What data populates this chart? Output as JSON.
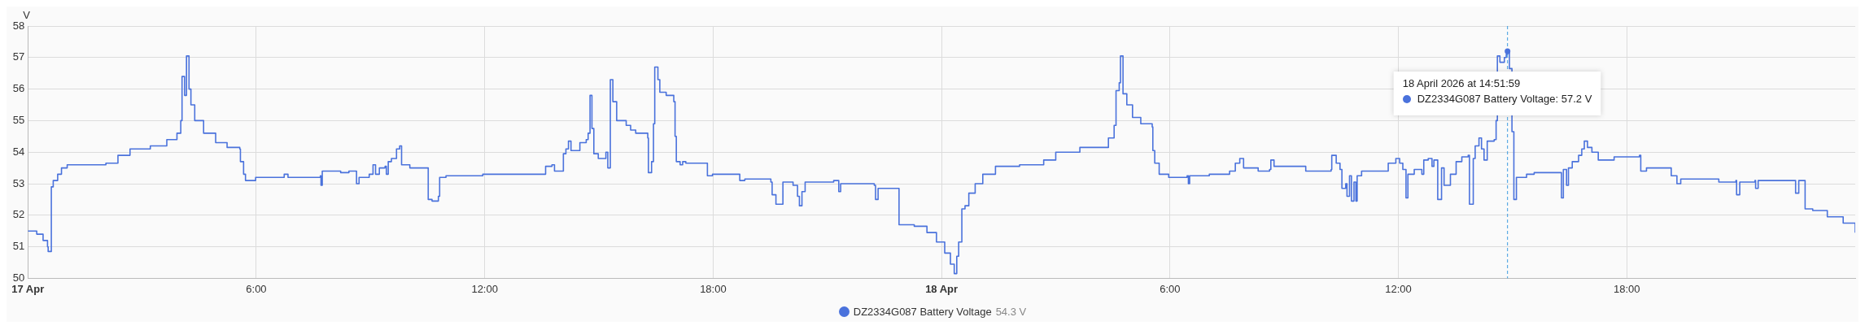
{
  "chart_data": {
    "type": "step",
    "ylabel": "V",
    "xlim": [
      "2026-04-17T00:00",
      "2026-04-19T00:00"
    ],
    "xticks": [
      {
        "value": "2026-04-17T00:00",
        "label": "17 Apr"
      },
      {
        "value": "2026-04-17T06:00",
        "label": "6:00"
      },
      {
        "value": "2026-04-17T12:00",
        "label": "12:00"
      },
      {
        "value": "2026-04-17T18:00",
        "label": "18:00"
      },
      {
        "value": "2026-04-18T00:00",
        "label": "18 Apr"
      },
      {
        "value": "2026-04-18T06:00",
        "label": "6:00"
      },
      {
        "value": "2026-04-18T12:00",
        "label": "12:00"
      },
      {
        "value": "2026-04-18T18:00",
        "label": "18:00"
      }
    ],
    "ylim": [
      50,
      58
    ],
    "yticks": [
      50,
      51,
      52,
      53,
      54,
      55,
      56,
      57,
      58
    ],
    "grid": true,
    "legend": "bottom",
    "x": [
      "2026-04-17T00:00",
      "2026-04-17T00:14",
      "2026-04-17T00:24",
      "2026-04-17T00:31",
      "2026-04-17T00:32",
      "2026-04-17T00:37",
      "2026-04-17T00:40",
      "2026-04-17T00:47",
      "2026-04-17T00:53",
      "2026-04-17T01:02",
      "2026-04-17T01:31",
      "2026-04-17T02:03",
      "2026-04-17T02:22",
      "2026-04-17T02:41",
      "2026-04-17T03:13",
      "2026-04-17T03:39",
      "2026-04-17T03:55",
      "2026-04-17T04:01",
      "2026-04-17T04:03",
      "2026-04-17T04:07",
      "2026-04-17T04:10",
      "2026-04-17T04:14",
      "2026-04-17T04:17",
      "2026-04-17T04:23",
      "2026-04-17T04:37",
      "2026-04-17T04:56",
      "2026-04-17T05:14",
      "2026-04-17T05:34",
      "2026-04-17T05:35",
      "2026-04-17T05:40",
      "2026-04-17T05:43",
      "2026-04-17T05:59",
      "2026-04-17T06:38",
      "2026-04-17T06:44",
      "2026-04-17T06:50",
      "2026-04-17T07:41",
      "2026-04-17T07:42",
      "2026-04-17T07:44",
      "2026-04-17T08:01",
      "2026-04-17T08:13",
      "2026-04-17T08:26",
      "2026-04-17T08:38",
      "2026-04-17T08:42",
      "2026-04-17T08:58",
      "2026-04-17T09:04",
      "2026-04-17T09:08",
      "2026-04-17T09:14",
      "2026-04-17T09:23",
      "2026-04-17T09:25",
      "2026-04-17T09:28",
      "2026-04-17T09:33",
      "2026-04-17T09:41",
      "2026-04-17T09:46",
      "2026-04-17T09:49",
      "2026-04-17T10:02",
      "2026-04-17T10:31",
      "2026-04-17T10:37",
      "2026-04-17T10:47",
      "2026-04-17T10:49",
      "2026-04-17T10:59",
      "2026-04-17T11:57",
      "2026-04-17T13:32",
      "2026-04-17T13:36",
      "2026-04-17T13:46",
      "2026-04-17T13:50",
      "2026-04-17T14:01",
      "2026-04-17T14:04",
      "2026-04-17T14:08",
      "2026-04-17T14:12",
      "2026-04-17T14:16",
      "2026-04-17T14:30",
      "2026-04-17T14:40",
      "2026-04-17T14:43",
      "2026-04-17T14:46",
      "2026-04-17T14:49",
      "2026-04-17T14:52",
      "2026-04-17T14:59",
      "2026-04-17T15:11",
      "2026-04-17T15:14",
      "2026-04-17T15:18",
      "2026-04-17T15:22",
      "2026-04-17T15:28",
      "2026-04-17T15:43",
      "2026-04-17T15:50",
      "2026-04-17T15:58",
      "2026-04-17T16:17",
      "2026-04-17T16:18",
      "2026-04-17T16:23",
      "2026-04-17T16:26",
      "2026-04-17T16:28",
      "2026-04-17T16:33",
      "2026-04-17T16:36",
      "2026-04-17T16:46",
      "2026-04-17T16:58",
      "2026-04-17T17:00",
      "2026-04-17T17:02",
      "2026-04-17T17:08",
      "2026-04-17T17:12",
      "2026-04-17T17:17",
      "2026-04-17T17:49",
      "2026-04-17T17:51",
      "2026-04-17T17:59",
      "2026-04-17T18:37",
      "2026-04-17T18:42",
      "2026-04-17T18:50",
      "2026-04-17T19:02",
      "2026-04-17T19:31",
      "2026-04-17T19:33",
      "2026-04-17T19:39",
      "2026-04-17T19:48",
      "2026-04-17T19:50",
      "2026-04-17T20:06",
      "2026-04-17T20:13",
      "2026-04-17T20:16",
      "2026-04-17T20:20",
      "2026-04-17T20:25",
      "2026-04-17T21:10",
      "2026-04-17T21:18",
      "2026-04-17T21:21",
      "2026-04-17T22:14",
      "2026-04-17T22:16",
      "2026-04-17T22:20",
      "2026-04-17T22:52",
      "2026-04-17T22:53",
      "2026-04-17T23:17",
      "2026-04-17T23:37",
      "2026-04-17T23:52",
      "2026-04-18T00:05",
      "2026-04-18T00:14",
      "2026-04-18T00:20",
      "2026-04-18T00:23",
      "2026-04-18T00:24",
      "2026-04-18T00:27",
      "2026-04-18T00:32",
      "2026-04-18T00:37",
      "2026-04-18T00:43",
      "2026-04-18T00:53",
      "2026-04-18T01:05",
      "2026-04-18T01:25",
      "2026-04-18T02:03",
      "2026-04-18T02:41",
      "2026-04-18T03:00",
      "2026-04-18T03:38",
      "2026-04-18T04:23",
      "2026-04-18T04:32",
      "2026-04-18T04:35",
      "2026-04-18T04:40",
      "2026-04-18T04:42",
      "2026-04-18T04:46",
      "2026-04-18T04:52",
      "2026-04-18T05:01",
      "2026-04-18T05:14",
      "2026-04-18T05:32",
      "2026-04-18T05:33",
      "2026-04-18T05:36",
      "2026-04-18T05:43",
      "2026-04-18T05:58",
      "2026-04-18T06:27",
      "2026-04-18T06:29",
      "2026-04-18T06:31",
      "2026-04-18T07:02",
      "2026-04-18T07:34",
      "2026-04-18T07:43",
      "2026-04-18T07:50",
      "2026-04-18T07:56",
      "2026-04-18T08:19",
      "2026-04-18T08:37",
      "2026-04-18T08:39",
      "2026-04-18T08:44",
      "2026-04-18T09:34",
      "2026-04-18T10:14",
      "2026-04-18T10:15",
      "2026-04-18T10:22",
      "2026-04-18T10:28",
      "2026-04-18T10:31",
      "2026-04-18T10:37",
      "2026-04-18T10:39",
      "2026-04-18T10:43",
      "2026-04-18T10:46",
      "2026-04-18T10:50",
      "2026-04-18T10:53",
      "2026-04-18T10:55",
      "2026-04-18T11:02",
      "2026-04-18T11:34",
      "2026-04-18T11:44",
      "2026-04-18T11:56",
      "2026-04-18T12:02",
      "2026-04-18T12:07",
      "2026-04-18T12:12",
      "2026-04-18T12:15",
      "2026-04-18T12:25",
      "2026-04-18T12:37",
      "2026-04-18T12:40",
      "2026-04-18T12:47",
      "2026-04-18T12:53",
      "2026-04-18T12:56",
      "2026-04-18T13:02",
      "2026-04-18T13:08",
      "2026-04-18T13:12",
      "2026-04-18T13:22",
      "2026-04-18T13:31",
      "2026-04-18T13:40",
      "2026-04-18T13:50",
      "2026-04-18T13:52",
      "2026-04-18T13:58",
      "2026-04-18T14:01",
      "2026-04-18T14:07",
      "2026-04-18T14:11",
      "2026-04-18T14:15",
      "2026-04-18T14:20",
      "2026-04-18T14:31",
      "2026-04-18T14:34",
      "2026-04-18T14:36",
      "2026-04-18T14:40",
      "2026-04-18T14:47",
      "2026-04-18T14:50",
      "2026-04-18T14:52",
      "2026-04-18T14:55",
      "2026-04-18T14:59",
      "2026-04-18T15:02",
      "2026-04-18T15:06",
      "2026-04-18T15:22",
      "2026-04-18T15:34",
      "2026-04-18T16:15",
      "2026-04-18T16:17",
      "2026-04-18T16:20",
      "2026-04-18T16:25",
      "2026-04-18T16:28",
      "2026-04-18T16:34",
      "2026-04-18T16:44",
      "2026-04-18T16:49",
      "2026-04-18T16:53",
      "2026-04-18T16:58",
      "2026-04-18T17:05",
      "2026-04-18T17:15",
      "2026-04-18T17:40",
      "2026-04-18T18:20",
      "2026-04-18T18:22",
      "2026-04-18T18:31",
      "2026-04-18T19:00",
      "2026-04-18T19:10",
      "2026-04-18T19:19",
      "2026-04-18T19:25",
      "2026-04-18T20:22",
      "2026-04-18T20:25",
      "2026-04-18T20:52",
      "2026-04-18T20:53",
      "2026-04-18T20:58",
      "2026-04-18T21:22",
      "2026-04-18T21:23",
      "2026-04-18T21:27",
      "2026-04-18T22:25",
      "2026-04-18T22:26",
      "2026-04-18T22:31",
      "2026-04-18T22:41",
      "2026-04-18T22:53",
      "2026-04-18T23:16",
      "2026-04-18T23:41",
      "2026-04-19T00:00"
    ],
    "series": [
      {
        "name": "DZ2334G087 Battery Voltage",
        "color": "#4a72dc",
        "values": [
          51.5,
          51.4,
          51.2,
          51.0,
          50.85,
          52.9,
          53.1,
          53.3,
          53.5,
          53.6,
          53.6,
          53.65,
          53.9,
          54.1,
          54.2,
          54.4,
          54.6,
          55.0,
          56.4,
          55.8,
          57.05,
          56.0,
          55.5,
          55.0,
          54.6,
          54.3,
          54.15,
          54.1,
          53.7,
          53.3,
          53.1,
          53.2,
          53.2,
          53.3,
          53.2,
          53.25,
          52.95,
          53.4,
          53.4,
          53.35,
          53.4,
          53.0,
          53.2,
          53.3,
          53.6,
          53.3,
          53.5,
          53.55,
          53.3,
          53.7,
          53.8,
          54.1,
          54.2,
          53.6,
          53.5,
          52.5,
          52.45,
          52.6,
          53.2,
          53.25,
          53.3,
          53.3,
          53.55,
          53.6,
          53.4,
          53.4,
          53.95,
          54.1,
          54.35,
          54.05,
          54.3,
          54.4,
          54.6,
          55.8,
          54.75,
          53.95,
          53.8,
          54.0,
          53.5,
          56.3,
          55.6,
          55.0,
          54.85,
          54.7,
          54.6,
          54.45,
          53.35,
          53.7,
          54.9,
          56.7,
          56.3,
          55.9,
          55.8,
          55.6,
          54.5,
          53.7,
          53.6,
          53.7,
          53.65,
          53.65,
          53.25,
          53.3,
          53.3,
          53.1,
          53.15,
          53.15,
          53.05,
          52.65,
          52.35,
          52.35,
          53.05,
          52.95,
          52.6,
          52.3,
          52.75,
          53.05,
          53.1,
          52.75,
          53.0,
          52.95,
          52.5,
          52.85,
          52.85,
          51.7,
          51.65,
          51.45,
          51.15,
          50.8,
          50.45,
          50.15,
          50.15,
          50.7,
          51.15,
          52.2,
          52.3,
          52.7,
          53.0,
          53.3,
          53.55,
          53.6,
          53.75,
          54.0,
          54.15,
          54.45,
          54.85,
          55.95,
          56.2,
          57.05,
          55.85,
          55.5,
          55.1,
          54.9,
          54.8,
          54.05,
          53.65,
          53.3,
          53.2,
          53.25,
          53.0,
          53.25,
          53.3,
          53.4,
          53.65,
          53.8,
          53.5,
          53.4,
          53.45,
          53.75,
          53.55,
          53.4,
          53.45,
          53.9,
          53.65,
          53.45,
          52.85,
          53.0,
          52.6,
          53.25,
          52.45,
          53.05,
          52.45,
          53.25,
          53.4,
          53.4,
          53.65,
          53.8,
          53.65,
          53.45,
          52.55,
          53.3,
          53.45,
          53.3,
          53.75,
          53.8,
          53.55,
          53.75,
          52.5,
          53.5,
          52.95,
          53.3,
          53.7,
          53.85,
          53.9,
          52.35,
          53.8,
          54.2,
          54.45,
          54.1,
          53.75,
          54.35,
          54.4,
          55.0,
          57.05,
          56.85,
          57.0,
          57.1,
          57.2,
          56.65,
          54.65,
          52.5,
          53.2,
          53.3,
          53.35,
          53.35,
          52.55,
          53.45,
          52.95,
          53.5,
          53.7,
          53.9,
          54.1,
          54.35,
          54.15,
          54.0,
          53.75,
          53.85,
          53.9,
          53.4,
          53.5,
          53.5,
          53.25,
          53.0,
          53.15,
          53.15,
          53.05,
          53.1,
          52.65,
          53.05,
          53.1,
          52.85,
          53.1,
          53.1,
          52.7,
          53.1,
          52.2,
          52.15,
          51.95,
          51.75,
          51.45
        ]
      }
    ],
    "ref_lines": [
      {
        "axis": "x",
        "value": "2026-04-18T14:52",
        "color": "#3d9be0",
        "line_style": "dashed"
      }
    ],
    "annotations": [
      "54.3 V",
      {
        "text": "18 April 2026 at 14:51:59\nDZ2334G087 Battery Voltage: 57.2 V",
        "x": "2026-04-18T14:52",
        "y": 57.2
      }
    ]
  }
}
